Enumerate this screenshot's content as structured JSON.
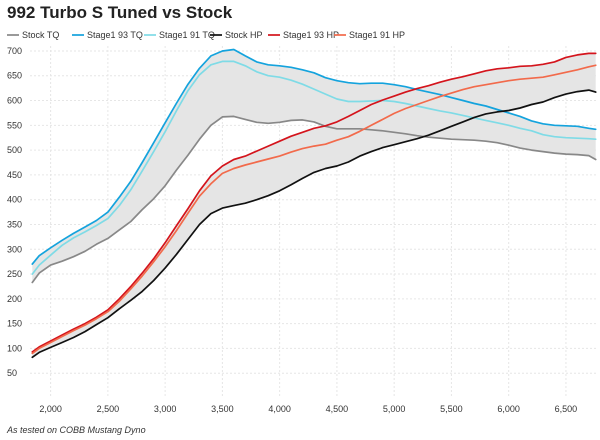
{
  "chart_data": {
    "type": "line",
    "title": "992 Turbo S Tuned vs Stock",
    "footnote": "As tested on COBB Mustang Dyno",
    "xlabel": "",
    "ylabel": "",
    "xlim": [
      1820,
      6780
    ],
    "ylim": [
      0,
      710
    ],
    "x_ticks": [
      2000,
      2500,
      3000,
      3500,
      4000,
      4500,
      5000,
      5500,
      6000,
      6500
    ],
    "x_tick_labels": [
      "2,000",
      "2,500",
      "3,000",
      "3,500",
      "4,000",
      "4,500",
      "5,000",
      "5,500",
      "6,000",
      "6,500"
    ],
    "y_ticks": [
      50,
      100,
      150,
      200,
      250,
      300,
      350,
      400,
      450,
      500,
      550,
      600,
      650,
      700
    ],
    "y_tick_labels": [
      "50",
      "100",
      "150",
      "200",
      "250",
      "300",
      "350",
      "400",
      "450",
      "500",
      "550",
      "600",
      "650",
      "700"
    ],
    "grid": true,
    "legend_position": "top",
    "shaded_bands": [
      {
        "between": [
          "Stock TQ",
          "Stage1 93 TQ"
        ],
        "color": "#e5e5e5"
      },
      {
        "between": [
          "Stock HP",
          "Stage1 93 HP"
        ],
        "color": "#e5e5e5"
      }
    ],
    "series": [
      {
        "name": "Stock TQ",
        "color": "#888888",
        "x": [
          1840,
          1900,
          2000,
          2100,
          2200,
          2300,
          2400,
          2500,
          2600,
          2700,
          2800,
          2900,
          3000,
          3100,
          3200,
          3300,
          3400,
          3500,
          3600,
          3700,
          3800,
          3900,
          4000,
          4100,
          4200,
          4300,
          4400,
          4500,
          4600,
          4700,
          4800,
          4900,
          5000,
          5100,
          5200,
          5300,
          5400,
          5500,
          5600,
          5700,
          5800,
          5900,
          6000,
          6100,
          6200,
          6300,
          6400,
          6500,
          6600,
          6700,
          6760
        ],
        "values": [
          233,
          252,
          268,
          276,
          285,
          296,
          310,
          322,
          339,
          356,
          380,
          402,
          428,
          460,
          490,
          522,
          550,
          567,
          568,
          562,
          556,
          554,
          556,
          560,
          561,
          557,
          548,
          543,
          543,
          543,
          541,
          539,
          536,
          533,
          529,
          526,
          524,
          522,
          521,
          520,
          518,
          515,
          510,
          504,
          500,
          497,
          494,
          492,
          491,
          489,
          481
        ]
      },
      {
        "name": "Stage1 93 TQ",
        "color": "#14a3dd",
        "x": [
          1840,
          1900,
          2000,
          2100,
          2200,
          2300,
          2400,
          2500,
          2600,
          2700,
          2800,
          2900,
          3000,
          3100,
          3200,
          3300,
          3400,
          3500,
          3600,
          3700,
          3800,
          3900,
          4000,
          4100,
          4200,
          4300,
          4400,
          4500,
          4600,
          4700,
          4800,
          4900,
          5000,
          5100,
          5200,
          5300,
          5400,
          5500,
          5600,
          5700,
          5800,
          5900,
          6000,
          6100,
          6200,
          6300,
          6400,
          6500,
          6600,
          6700,
          6760
        ],
        "values": [
          270,
          287,
          303,
          318,
          332,
          345,
          358,
          375,
          405,
          437,
          475,
          515,
          555,
          595,
          633,
          665,
          690,
          700,
          703,
          690,
          678,
          672,
          670,
          667,
          662,
          656,
          646,
          640,
          636,
          634,
          635,
          635,
          632,
          628,
          622,
          617,
          612,
          606,
          600,
          594,
          589,
          582,
          575,
          568,
          559,
          553,
          550,
          549,
          548,
          544,
          542
        ]
      },
      {
        "name": "Stage1 91 TQ",
        "color": "#7fdbe6",
        "x": [
          1840,
          1900,
          2000,
          2100,
          2200,
          2300,
          2400,
          2500,
          2600,
          2700,
          2800,
          2900,
          3000,
          3100,
          3200,
          3300,
          3400,
          3500,
          3600,
          3700,
          3800,
          3900,
          4000,
          4100,
          4200,
          4300,
          4400,
          4500,
          4600,
          4700,
          4800,
          4900,
          5000,
          5100,
          5200,
          5300,
          5400,
          5500,
          5600,
          5700,
          5800,
          5900,
          6000,
          6100,
          6200,
          6300,
          6400,
          6500,
          6600,
          6700,
          6760
        ],
        "values": [
          250,
          268,
          288,
          308,
          323,
          335,
          348,
          362,
          388,
          420,
          458,
          497,
          537,
          580,
          620,
          652,
          672,
          679,
          679,
          670,
          658,
          650,
          647,
          641,
          633,
          623,
          613,
          603,
          598,
          598,
          599,
          600,
          598,
          594,
          589,
          584,
          579,
          575,
          570,
          565,
          560,
          555,
          550,
          544,
          539,
          531,
          527,
          525,
          524,
          523,
          522
        ]
      },
      {
        "name": "Stock HP",
        "color": "#111111",
        "x": [
          1840,
          1900,
          2000,
          2100,
          2200,
          2300,
          2400,
          2500,
          2600,
          2700,
          2800,
          2900,
          3000,
          3100,
          3200,
          3300,
          3400,
          3500,
          3600,
          3700,
          3800,
          3900,
          4000,
          4100,
          4200,
          4300,
          4400,
          4500,
          4600,
          4700,
          4800,
          4900,
          5000,
          5100,
          5200,
          5300,
          5400,
          5500,
          5600,
          5700,
          5800,
          5900,
          6000,
          6100,
          6200,
          6300,
          6400,
          6500,
          6600,
          6700,
          6760
        ],
        "values": [
          82,
          92,
          102,
          112,
          122,
          134,
          148,
          162,
          180,
          197,
          215,
          237,
          262,
          290,
          320,
          350,
          372,
          383,
          388,
          393,
          400,
          408,
          418,
          430,
          443,
          455,
          463,
          468,
          476,
          488,
          497,
          505,
          511,
          517,
          523,
          530,
          539,
          548,
          557,
          566,
          573,
          577,
          580,
          585,
          592,
          597,
          606,
          613,
          618,
          621,
          617
        ]
      },
      {
        "name": "Stage1 93 HP",
        "color": "#d4141c",
        "x": [
          1840,
          1900,
          2000,
          2100,
          2200,
          2300,
          2400,
          2500,
          2600,
          2700,
          2800,
          2900,
          3000,
          3100,
          3200,
          3300,
          3400,
          3500,
          3600,
          3700,
          3800,
          3900,
          4000,
          4100,
          4200,
          4300,
          4400,
          4500,
          4600,
          4700,
          4800,
          4900,
          5000,
          5100,
          5200,
          5300,
          5400,
          5500,
          5600,
          5700,
          5800,
          5900,
          6000,
          6100,
          6200,
          6300,
          6400,
          6500,
          6600,
          6700,
          6760
        ],
        "values": [
          93,
          103,
          115,
          127,
          139,
          150,
          163,
          178,
          200,
          225,
          252,
          281,
          313,
          348,
          382,
          418,
          448,
          468,
          481,
          488,
          498,
          508,
          518,
          528,
          536,
          544,
          549,
          557,
          568,
          580,
          592,
          601,
          609,
          617,
          624,
          630,
          637,
          643,
          648,
          654,
          660,
          664,
          666,
          669,
          670,
          673,
          678,
          687,
          692,
          695,
          695
        ]
      },
      {
        "name": "Stage1 91 HP",
        "color": "#f26a4b",
        "x": [
          1840,
          1900,
          2000,
          2100,
          2200,
          2300,
          2400,
          2500,
          2600,
          2700,
          2800,
          2900,
          3000,
          3100,
          3200,
          3300,
          3400,
          3500,
          3600,
          3700,
          3800,
          3900,
          4000,
          4100,
          4200,
          4300,
          4400,
          4500,
          4600,
          4700,
          4800,
          4900,
          5000,
          5100,
          5200,
          5300,
          5400,
          5500,
          5600,
          5700,
          5800,
          5900,
          6000,
          6100,
          6200,
          6300,
          6400,
          6500,
          6600,
          6700,
          6760
        ],
        "values": [
          90,
          100,
          112,
          124,
          136,
          147,
          160,
          174,
          195,
          220,
          246,
          275,
          305,
          338,
          373,
          407,
          432,
          453,
          463,
          470,
          476,
          482,
          488,
          496,
          503,
          508,
          512,
          520,
          527,
          538,
          550,
          562,
          574,
          584,
          592,
          600,
          608,
          615,
          622,
          628,
          632,
          636,
          640,
          643,
          645,
          647,
          652,
          657,
          662,
          668,
          671
        ]
      }
    ]
  }
}
